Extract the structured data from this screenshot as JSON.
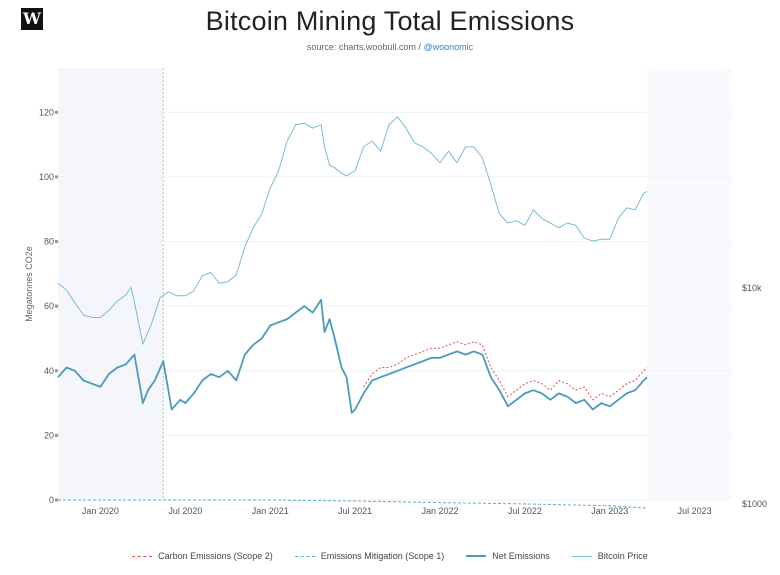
{
  "logo": "W",
  "title": "Bitcoin Mining Total Emissions",
  "source_prefix": "source: charts.woobull.com / ",
  "source_handle": "@woonomic",
  "colors": {
    "carbon": "#d9534f",
    "mitigation": "#5bb0c9",
    "net": "#4a9bbd",
    "price": "#79bcd4",
    "shade": "#f4f6fb"
  },
  "chart_data": {
    "type": "line",
    "title": "Bitcoin Mining Total Emissions",
    "ylabel": "Megatonnes CO2e",
    "ylim": [
      0,
      130
    ],
    "yticks": [
      0,
      20,
      40,
      60,
      80,
      100,
      120
    ],
    "y2_scale": "log",
    "y2_range": [
      1000,
      100000
    ],
    "y2_ticks": [
      {
        "value": 1000,
        "label": "$1000"
      },
      {
        "value": 10000,
        "label": "$10k"
      }
    ],
    "x_range": [
      2019.75,
      2023.72
    ],
    "xticks": [
      {
        "x": 2020.0,
        "label": "Jan 2020"
      },
      {
        "x": 2020.5,
        "label": "Jul 2020"
      },
      {
        "x": 2021.0,
        "label": "Jan 2021"
      },
      {
        "x": 2021.5,
        "label": "Jul 2021"
      },
      {
        "x": 2022.0,
        "label": "Jan 2022"
      },
      {
        "x": 2022.5,
        "label": "Jul 2022"
      },
      {
        "x": 2023.0,
        "label": "Jan 2023"
      },
      {
        "x": 2023.5,
        "label": "Jul 2023"
      }
    ],
    "halving_x": 2020.37,
    "data_end_x": 2023.22,
    "series": [
      {
        "name": "Net Emissions",
        "x": [
          2019.75,
          2019.8,
          2019.85,
          2019.9,
          2019.95,
          2020.0,
          2020.05,
          2020.1,
          2020.15,
          2020.2,
          2020.25,
          2020.28,
          2020.32,
          2020.37,
          2020.42,
          2020.47,
          2020.5,
          2020.55,
          2020.6,
          2020.65,
          2020.7,
          2020.75,
          2020.8,
          2020.85,
          2020.9,
          2020.95,
          2021.0,
          2021.05,
          2021.1,
          2021.15,
          2021.2,
          2021.25,
          2021.3,
          2021.32,
          2021.35,
          2021.38,
          2021.42,
          2021.45,
          2021.48,
          2021.5,
          2021.55,
          2021.6,
          2021.65,
          2021.7,
          2021.75,
          2021.8,
          2021.85,
          2021.9,
          2021.95,
          2022.0,
          2022.05,
          2022.1,
          2022.15,
          2022.2,
          2022.25,
          2022.3,
          2022.35,
          2022.4,
          2022.45,
          2022.5,
          2022.55,
          2022.6,
          2022.65,
          2022.7,
          2022.75,
          2022.8,
          2022.85,
          2022.9,
          2022.95,
          2023.0,
          2023.05,
          2023.1,
          2023.15,
          2023.2,
          2023.22
        ],
        "values": [
          38,
          41,
          40,
          37,
          36,
          35,
          39,
          41,
          42,
          45,
          30,
          34,
          37,
          43,
          28,
          31,
          30,
          33,
          37,
          39,
          38,
          40,
          37,
          45,
          48,
          50,
          54,
          55,
          56,
          58,
          60,
          58,
          62,
          52,
          56,
          50,
          41,
          38,
          27,
          28,
          33,
          37,
          38,
          39,
          40,
          41,
          42,
          43,
          44,
          44,
          45,
          46,
          45,
          46,
          45,
          38,
          34,
          29,
          31,
          33,
          34,
          33,
          31,
          33,
          32,
          30,
          31,
          28,
          30,
          29,
          31,
          33,
          34,
          37,
          38
        ]
      },
      {
        "name": "Carbon Emissions (Scope 2)",
        "x": [
          2021.55,
          2021.6,
          2021.65,
          2021.7,
          2021.75,
          2021.8,
          2021.85,
          2021.9,
          2021.95,
          2022.0,
          2022.05,
          2022.1,
          2022.15,
          2022.2,
          2022.25,
          2022.3,
          2022.35,
          2022.4,
          2022.45,
          2022.5,
          2022.55,
          2022.6,
          2022.65,
          2022.7,
          2022.75,
          2022.8,
          2022.85,
          2022.9,
          2022.95,
          2023.0,
          2023.05,
          2023.1,
          2023.15,
          2023.2,
          2023.22
        ],
        "values": [
          35,
          39,
          41,
          41,
          42,
          44,
          45,
          46,
          47,
          47,
          48,
          49,
          48,
          49,
          48,
          41,
          37,
          32,
          34,
          36,
          37,
          36,
          34,
          37,
          36,
          34,
          35,
          31,
          33,
          32,
          34,
          36,
          37,
          40,
          41
        ]
      },
      {
        "name": "Emissions Mitigation (Scope 1)",
        "x": [
          2019.75,
          2020.5,
          2021.0,
          2021.5,
          2022.0,
          2022.5,
          2023.0,
          2023.22
        ],
        "values": [
          0,
          0,
          0,
          -0.3,
          -0.8,
          -1.2,
          -1.8,
          -2.5
        ]
      },
      {
        "name": "Bitcoin Price",
        "x": [
          2019.75,
          2019.8,
          2019.85,
          2019.9,
          2019.95,
          2020.0,
          2020.05,
          2020.1,
          2020.15,
          2020.18,
          2020.2,
          2020.25,
          2020.3,
          2020.35,
          2020.4,
          2020.45,
          2020.5,
          2020.55,
          2020.6,
          2020.65,
          2020.7,
          2020.75,
          2020.8,
          2020.85,
          2020.9,
          2020.95,
          2021.0,
          2021.05,
          2021.1,
          2021.15,
          2021.2,
          2021.25,
          2021.3,
          2021.32,
          2021.35,
          2021.38,
          2021.42,
          2021.45,
          2021.5,
          2021.55,
          2021.6,
          2021.65,
          2021.7,
          2021.75,
          2021.8,
          2021.85,
          2021.9,
          2021.95,
          2022.0,
          2022.05,
          2022.1,
          2022.15,
          2022.2,
          2022.25,
          2022.3,
          2022.35,
          2022.4,
          2022.45,
          2022.5,
          2022.55,
          2022.6,
          2022.65,
          2022.7,
          2022.75,
          2022.8,
          2022.85,
          2022.9,
          2022.95,
          2023.0,
          2023.05,
          2023.1,
          2023.15,
          2023.2,
          2023.22
        ],
        "values": [
          10500,
          9800,
          8500,
          7500,
          7300,
          7300,
          7900,
          8700,
          9300,
          10100,
          8600,
          5500,
          6800,
          9000,
          9600,
          9200,
          9200,
          9700,
          11400,
          11800,
          10500,
          10700,
          11500,
          15500,
          19000,
          22000,
          29000,
          35000,
          48000,
          57000,
          58000,
          55000,
          57000,
          45000,
          37000,
          36000,
          34000,
          33000,
          35000,
          45000,
          48000,
          43000,
          57000,
          62000,
          55000,
          47000,
          45000,
          42000,
          38000,
          43000,
          38000,
          45000,
          45000,
          40000,
          30000,
          22000,
          20000,
          20500,
          19500,
          23000,
          21000,
          20000,
          19000,
          20000,
          19500,
          17000,
          16500,
          16800,
          16800,
          21000,
          23500,
          23000,
          27500,
          28000
        ]
      }
    ]
  },
  "legend": [
    {
      "key": "carbon",
      "label": "Carbon Emissions (Scope 2)"
    },
    {
      "key": "mitigation",
      "label": "Emissions Mitigation (Scope 1)"
    },
    {
      "key": "net",
      "label": "Net Emissions"
    },
    {
      "key": "price",
      "label": "Bitcoin Price"
    }
  ]
}
